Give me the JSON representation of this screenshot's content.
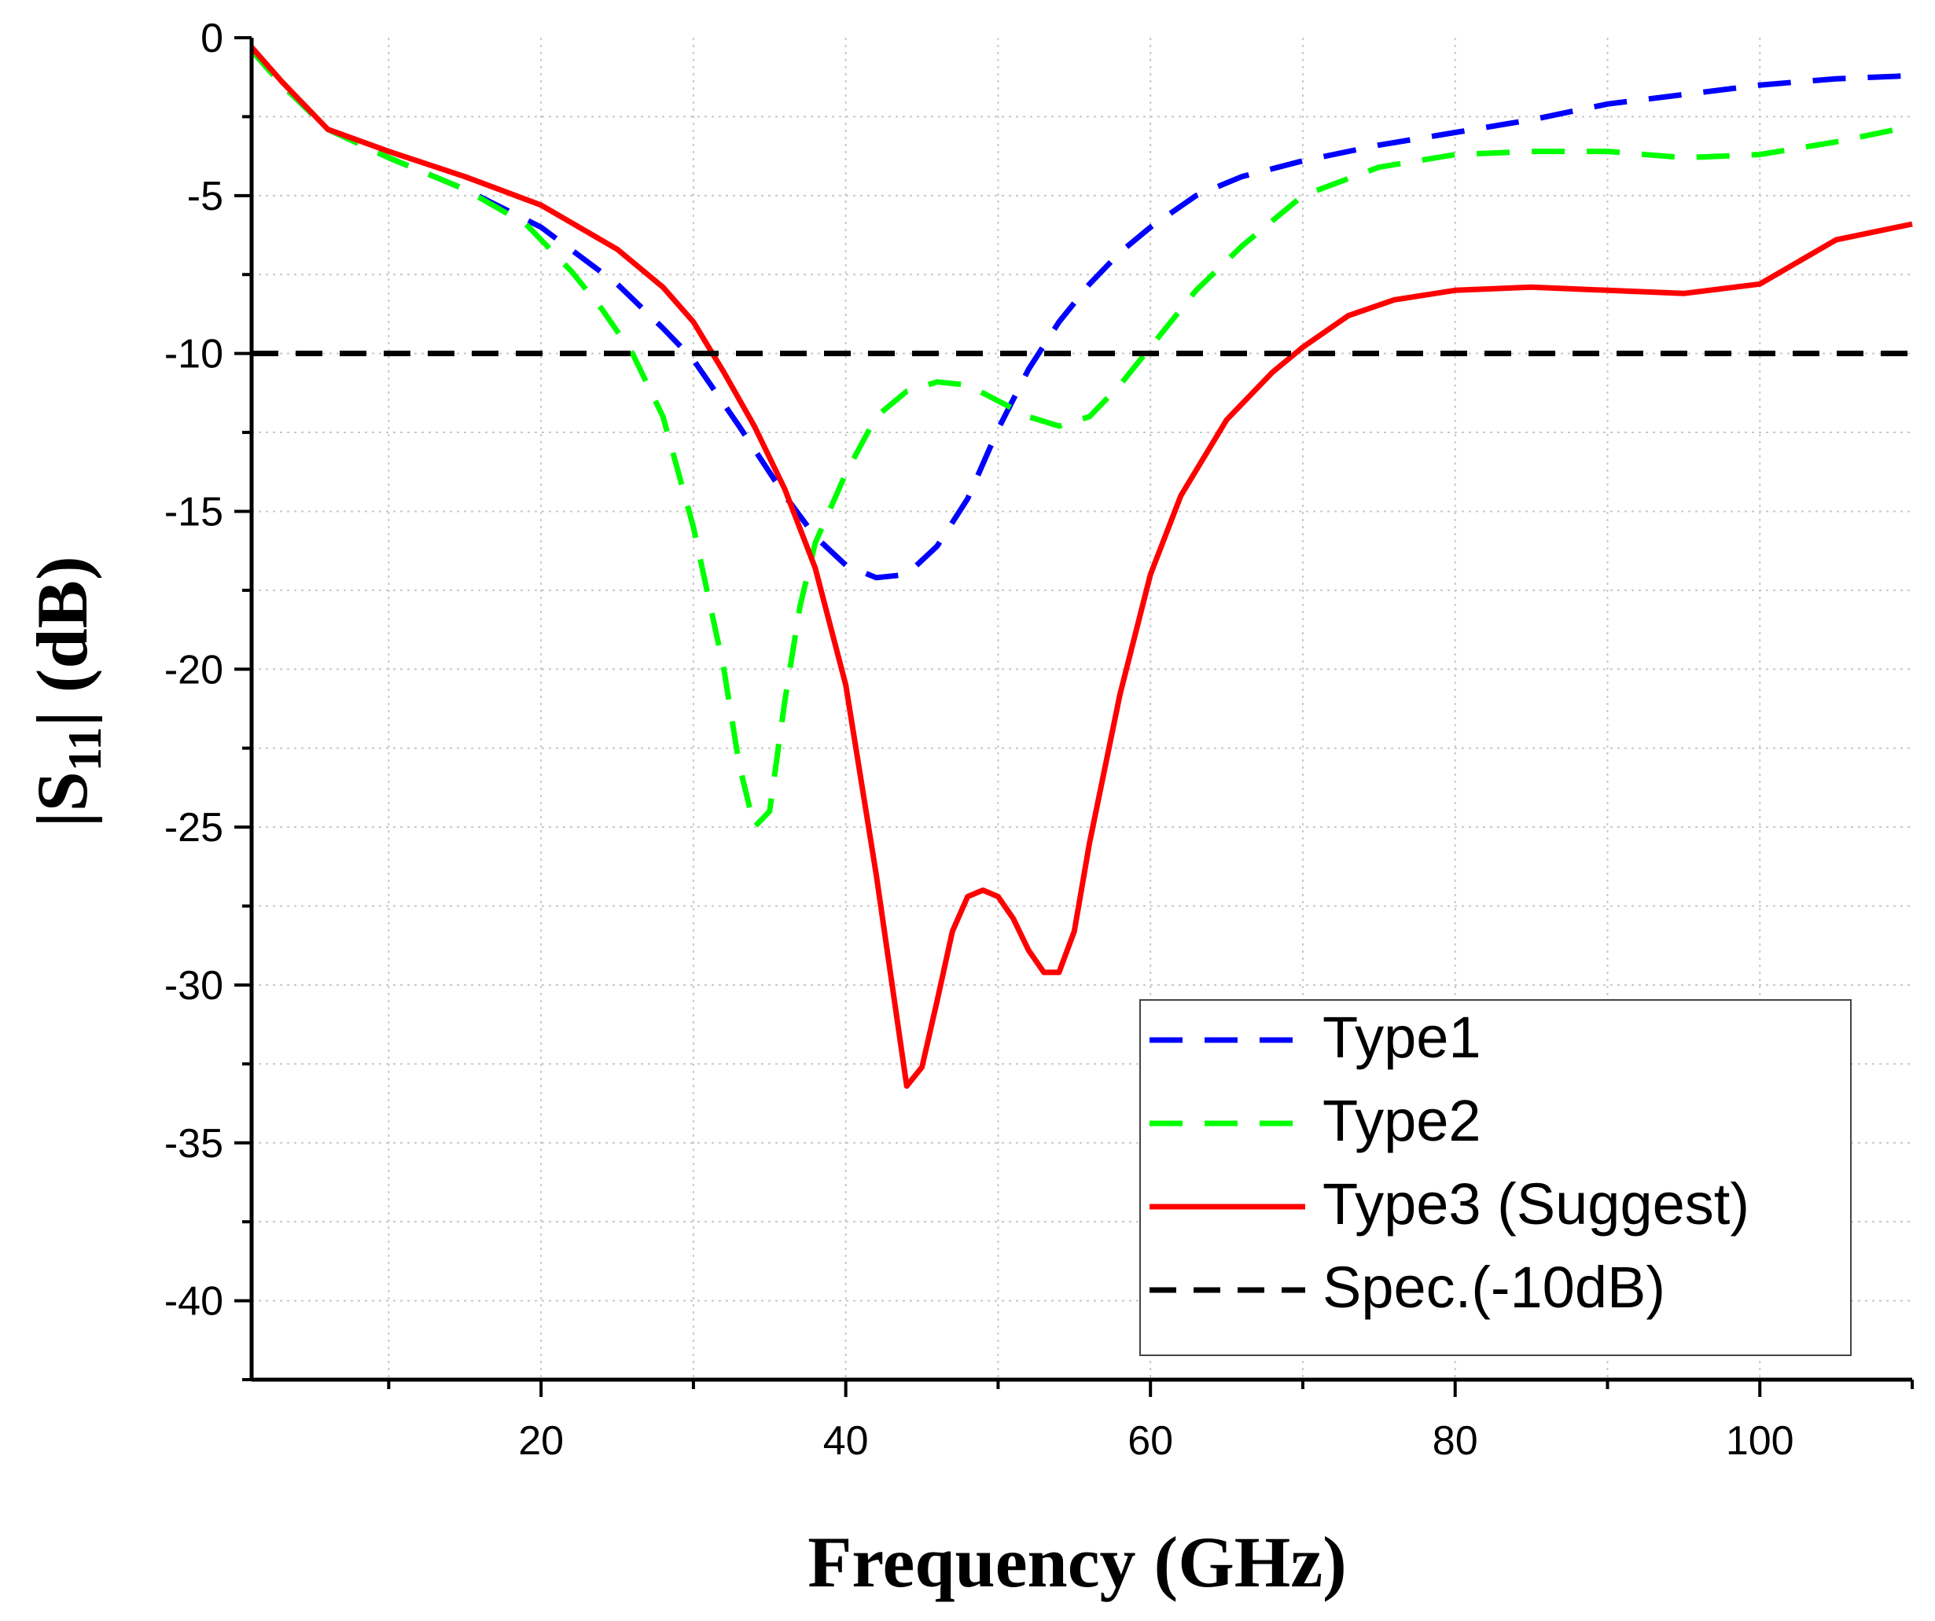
{
  "chart_data": {
    "type": "line",
    "title": "",
    "xlabel": "Frequency (GHz)",
    "ylabel": {
      "prefix": "|S",
      "subscript": "11",
      "suffix": "|  (dB)"
    },
    "xlim": [
      1,
      110
    ],
    "ylim": [
      -42.5,
      0
    ],
    "xticks": [
      20,
      40,
      60,
      80,
      100
    ],
    "xminor": [
      10,
      30,
      50,
      70,
      90,
      110
    ],
    "yticks": [
      0,
      -5,
      -10,
      -15,
      -20,
      -25,
      -30,
      -35,
      -40
    ],
    "yminor": [
      -2.5,
      -7.5,
      -12.5,
      -17.5,
      -22.5,
      -27.5,
      -32.5,
      -37.5,
      -42.5
    ],
    "grid": true,
    "legend_position": "bottom-right",
    "series": [
      {
        "name": "Type1",
        "color": "#0000ff",
        "dash": "dash",
        "x": [
          1,
          3,
          6,
          10,
          15,
          20,
          25,
          28,
          30,
          33,
          36,
          38,
          40,
          42,
          44,
          46,
          48,
          50,
          52,
          54,
          56,
          58,
          60,
          63,
          66,
          70,
          75,
          80,
          85,
          90,
          95,
          100,
          105,
          110
        ],
        "y": [
          -0.4,
          -1.5,
          -2.9,
          -3.8,
          -4.8,
          -6.0,
          -7.8,
          -9.2,
          -10.2,
          -12.3,
          -14.5,
          -15.8,
          -16.7,
          -17.1,
          -17.0,
          -16.1,
          -14.6,
          -12.4,
          -10.5,
          -9.0,
          -7.8,
          -6.8,
          -6.0,
          -5.0,
          -4.4,
          -3.9,
          -3.4,
          -3.0,
          -2.6,
          -2.1,
          -1.8,
          -1.5,
          -1.3,
          -1.2
        ]
      },
      {
        "name": "Type2",
        "color": "#00ff00",
        "dash": "dash",
        "x": [
          1,
          3,
          6,
          10,
          15,
          19,
          22,
          24,
          26,
          28,
          30,
          32,
          33,
          34,
          35,
          36,
          37,
          38,
          40,
          42,
          44,
          46,
          48,
          50,
          52,
          54,
          56,
          58,
          60,
          63,
          66,
          70,
          75,
          80,
          85,
          90,
          95,
          100,
          105,
          110
        ],
        "y": [
          -0.4,
          -1.5,
          -2.9,
          -3.8,
          -4.8,
          -5.9,
          -7.4,
          -8.6,
          -10.0,
          -12.0,
          -15.5,
          -20.0,
          -23.0,
          -25.0,
          -24.5,
          -21.0,
          -18.0,
          -16.0,
          -13.8,
          -12.0,
          -11.2,
          -10.9,
          -11.0,
          -11.5,
          -12.0,
          -12.3,
          -12.0,
          -11.0,
          -9.8,
          -8.0,
          -6.6,
          -5.0,
          -4.1,
          -3.7,
          -3.6,
          -3.6,
          -3.8,
          -3.7,
          -3.3,
          -2.8
        ]
      },
      {
        "name": "Type3 (Suggest)",
        "color": "#ff0000",
        "dash": "solid",
        "x": [
          1,
          3,
          6,
          10,
          15,
          20,
          25,
          28,
          30,
          32,
          34,
          36,
          38,
          40,
          42,
          44,
          45,
          46,
          47,
          48,
          49,
          50,
          51,
          52,
          53,
          54,
          55,
          56,
          58,
          60,
          62,
          65,
          68,
          70,
          73,
          76,
          80,
          85,
          90,
          95,
          100,
          105,
          110
        ],
        "y": [
          -0.3,
          -1.4,
          -2.9,
          -3.6,
          -4.4,
          -5.3,
          -6.7,
          -7.9,
          -9.0,
          -10.6,
          -12.3,
          -14.3,
          -16.8,
          -20.5,
          -26.5,
          -33.2,
          -32.6,
          -30.5,
          -28.3,
          -27.2,
          -27.0,
          -27.2,
          -27.9,
          -28.9,
          -29.6,
          -29.6,
          -28.3,
          -25.5,
          -20.8,
          -17.0,
          -14.5,
          -12.1,
          -10.6,
          -9.8,
          -8.8,
          -8.3,
          -8.0,
          -7.9,
          -8.0,
          -8.1,
          -7.8,
          -6.4,
          -5.9
        ]
      },
      {
        "name": "Spec.(-10dB)",
        "color": "#000000",
        "dash": "dash",
        "x": [
          1,
          110
        ],
        "y": [
          -10,
          -10
        ]
      }
    ]
  }
}
